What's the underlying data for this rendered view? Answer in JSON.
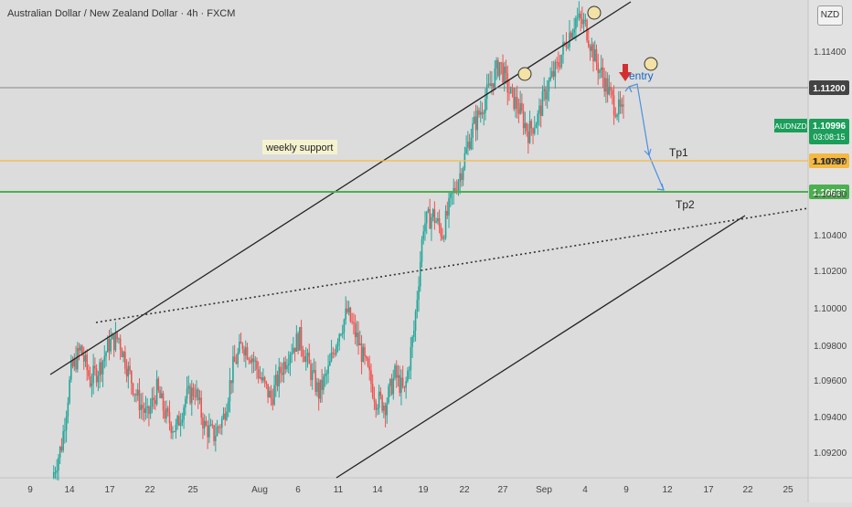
{
  "header": {
    "title": "Australian Dollar / New Zealand Dollar · 4h · FXCM",
    "currency": "NZD"
  },
  "colors": {
    "bull": "#26a69a",
    "bear": "#ef5350",
    "support_weekly": "#f5b942",
    "support_green": "#4caf50",
    "arrow_blue": "#4a90e2",
    "entry_arrow": "#d32f2f",
    "symbol_badge": "#1b9e5a"
  },
  "chart_data": {
    "type": "candlestick",
    "symbol": "AUDNZD",
    "interval": "4h",
    "ylim": [
      1.091,
      1.1162
    ],
    "y_ticks": [
      "1.11400",
      "1.10800",
      "1.10600",
      "1.10400",
      "1.10200",
      "1.10000",
      "1.09800",
      "1.09600",
      "1.09400",
      "1.09200"
    ],
    "x_ticks": [
      "9",
      "14",
      "17",
      "22",
      "25",
      "Aug",
      "6",
      "11",
      "14",
      "19",
      "22",
      "27",
      "Sep",
      "4",
      "9",
      "12",
      "17",
      "22",
      "25"
    ],
    "price_levels": [
      {
        "label": "1.11200",
        "value": 1.112,
        "style": "gray"
      },
      {
        "label": "1.10797",
        "value": 1.10797,
        "style": "weekly"
      },
      {
        "label": "1.10627",
        "value": 1.10627,
        "style": "green"
      }
    ],
    "current_price": {
      "symbol": "AUDNZD",
      "price": "1.10996",
      "countdown": "03:08:15",
      "value": 1.10996
    },
    "annotations": {
      "weekly_support": "weekly support",
      "entry": "entry",
      "tp1": "Tp1",
      "tp2": "Tp2"
    },
    "path_points": [
      [
        0,
        1.0902
      ],
      [
        6,
        1.092
      ],
      [
        12,
        1.096
      ],
      [
        18,
        1.0972
      ],
      [
        24,
        1.0955
      ],
      [
        30,
        1.0962
      ],
      [
        36,
        1.0975
      ],
      [
        42,
        1.0978
      ],
      [
        48,
        1.096
      ],
      [
        54,
        1.0945
      ],
      [
        60,
        1.0935
      ],
      [
        66,
        1.095
      ],
      [
        72,
        1.0935
      ],
      [
        78,
        1.0928
      ],
      [
        84,
        1.0945
      ],
      [
        90,
        1.095
      ],
      [
        96,
        1.093
      ],
      [
        102,
        1.0925
      ],
      [
        108,
        1.0935
      ],
      [
        114,
        1.0962
      ],
      [
        120,
        1.0975
      ],
      [
        126,
        1.0968
      ],
      [
        132,
        1.0955
      ],
      [
        138,
        1.0945
      ],
      [
        144,
        1.096
      ],
      [
        150,
        1.0972
      ],
      [
        156,
        1.0978
      ],
      [
        162,
        1.0962
      ],
      [
        168,
        1.0948
      ],
      [
        174,
        1.096
      ],
      [
        180,
        1.098
      ],
      [
        186,
        1.0992
      ],
      [
        192,
        1.0978
      ],
      [
        198,
        1.0962
      ],
      [
        204,
        1.0945
      ],
      [
        210,
        1.0942
      ],
      [
        216,
        1.0958
      ],
      [
        222,
        1.0948
      ],
      [
        228,
        1.0982
      ],
      [
        234,
        1.104
      ],
      [
        240,
        1.1045
      ],
      [
        246,
        1.1035
      ],
      [
        252,
        1.1055
      ],
      [
        258,
        1.107
      ],
      [
        264,
        1.109
      ],
      [
        270,
        1.1102
      ],
      [
        276,
        1.1115
      ],
      [
        282,
        1.1128
      ],
      [
        288,
        1.1112
      ],
      [
        294,
        1.1103
      ],
      [
        300,
        1.109
      ],
      [
        306,
        1.1098
      ],
      [
        312,
        1.1115
      ],
      [
        318,
        1.1125
      ],
      [
        324,
        1.114
      ],
      [
        330,
        1.1152
      ],
      [
        336,
        1.1148
      ],
      [
        342,
        1.113
      ],
      [
        348,
        1.1118
      ],
      [
        354,
        1.1105
      ],
      [
        360,
        1.1099
      ]
    ]
  }
}
